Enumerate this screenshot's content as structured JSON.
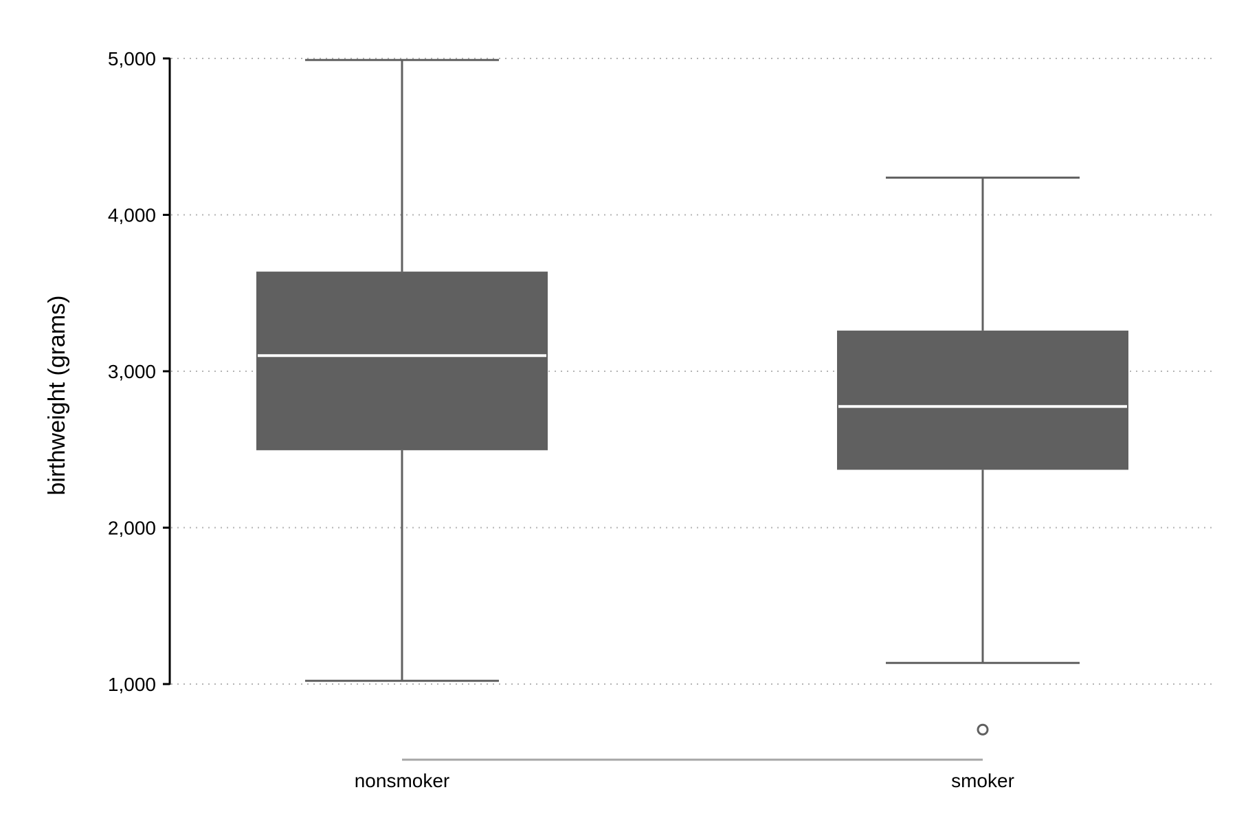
{
  "chart_data": {
    "type": "boxplot",
    "title": "",
    "xlabel": "",
    "ylabel": "birthweight (grams)",
    "ylim": [
      1000,
      5000
    ],
    "yticks": [
      1000,
      2000,
      3000,
      4000,
      5000
    ],
    "ytick_labels": [
      "1,000",
      "2,000",
      "3,000",
      "4,000",
      "5,000"
    ],
    "grid": "horizontal dotted",
    "legend": "none",
    "categories": [
      "nonsmoker",
      "smoker"
    ],
    "boxes": [
      {
        "category": "nonsmoker",
        "whisker_low": 1021,
        "q1": 2495,
        "median": 3100,
        "q3": 3637,
        "whisker_high": 4990,
        "outliers": []
      },
      {
        "category": "smoker",
        "whisker_low": 1135,
        "q1": 2370,
        "median": 2775,
        "q3": 3260,
        "whisker_high": 4238,
        "outliers": [
          709
        ]
      }
    ],
    "box_color": "#606060",
    "median_color": "#ffffff",
    "whisker_color": "#606060"
  }
}
